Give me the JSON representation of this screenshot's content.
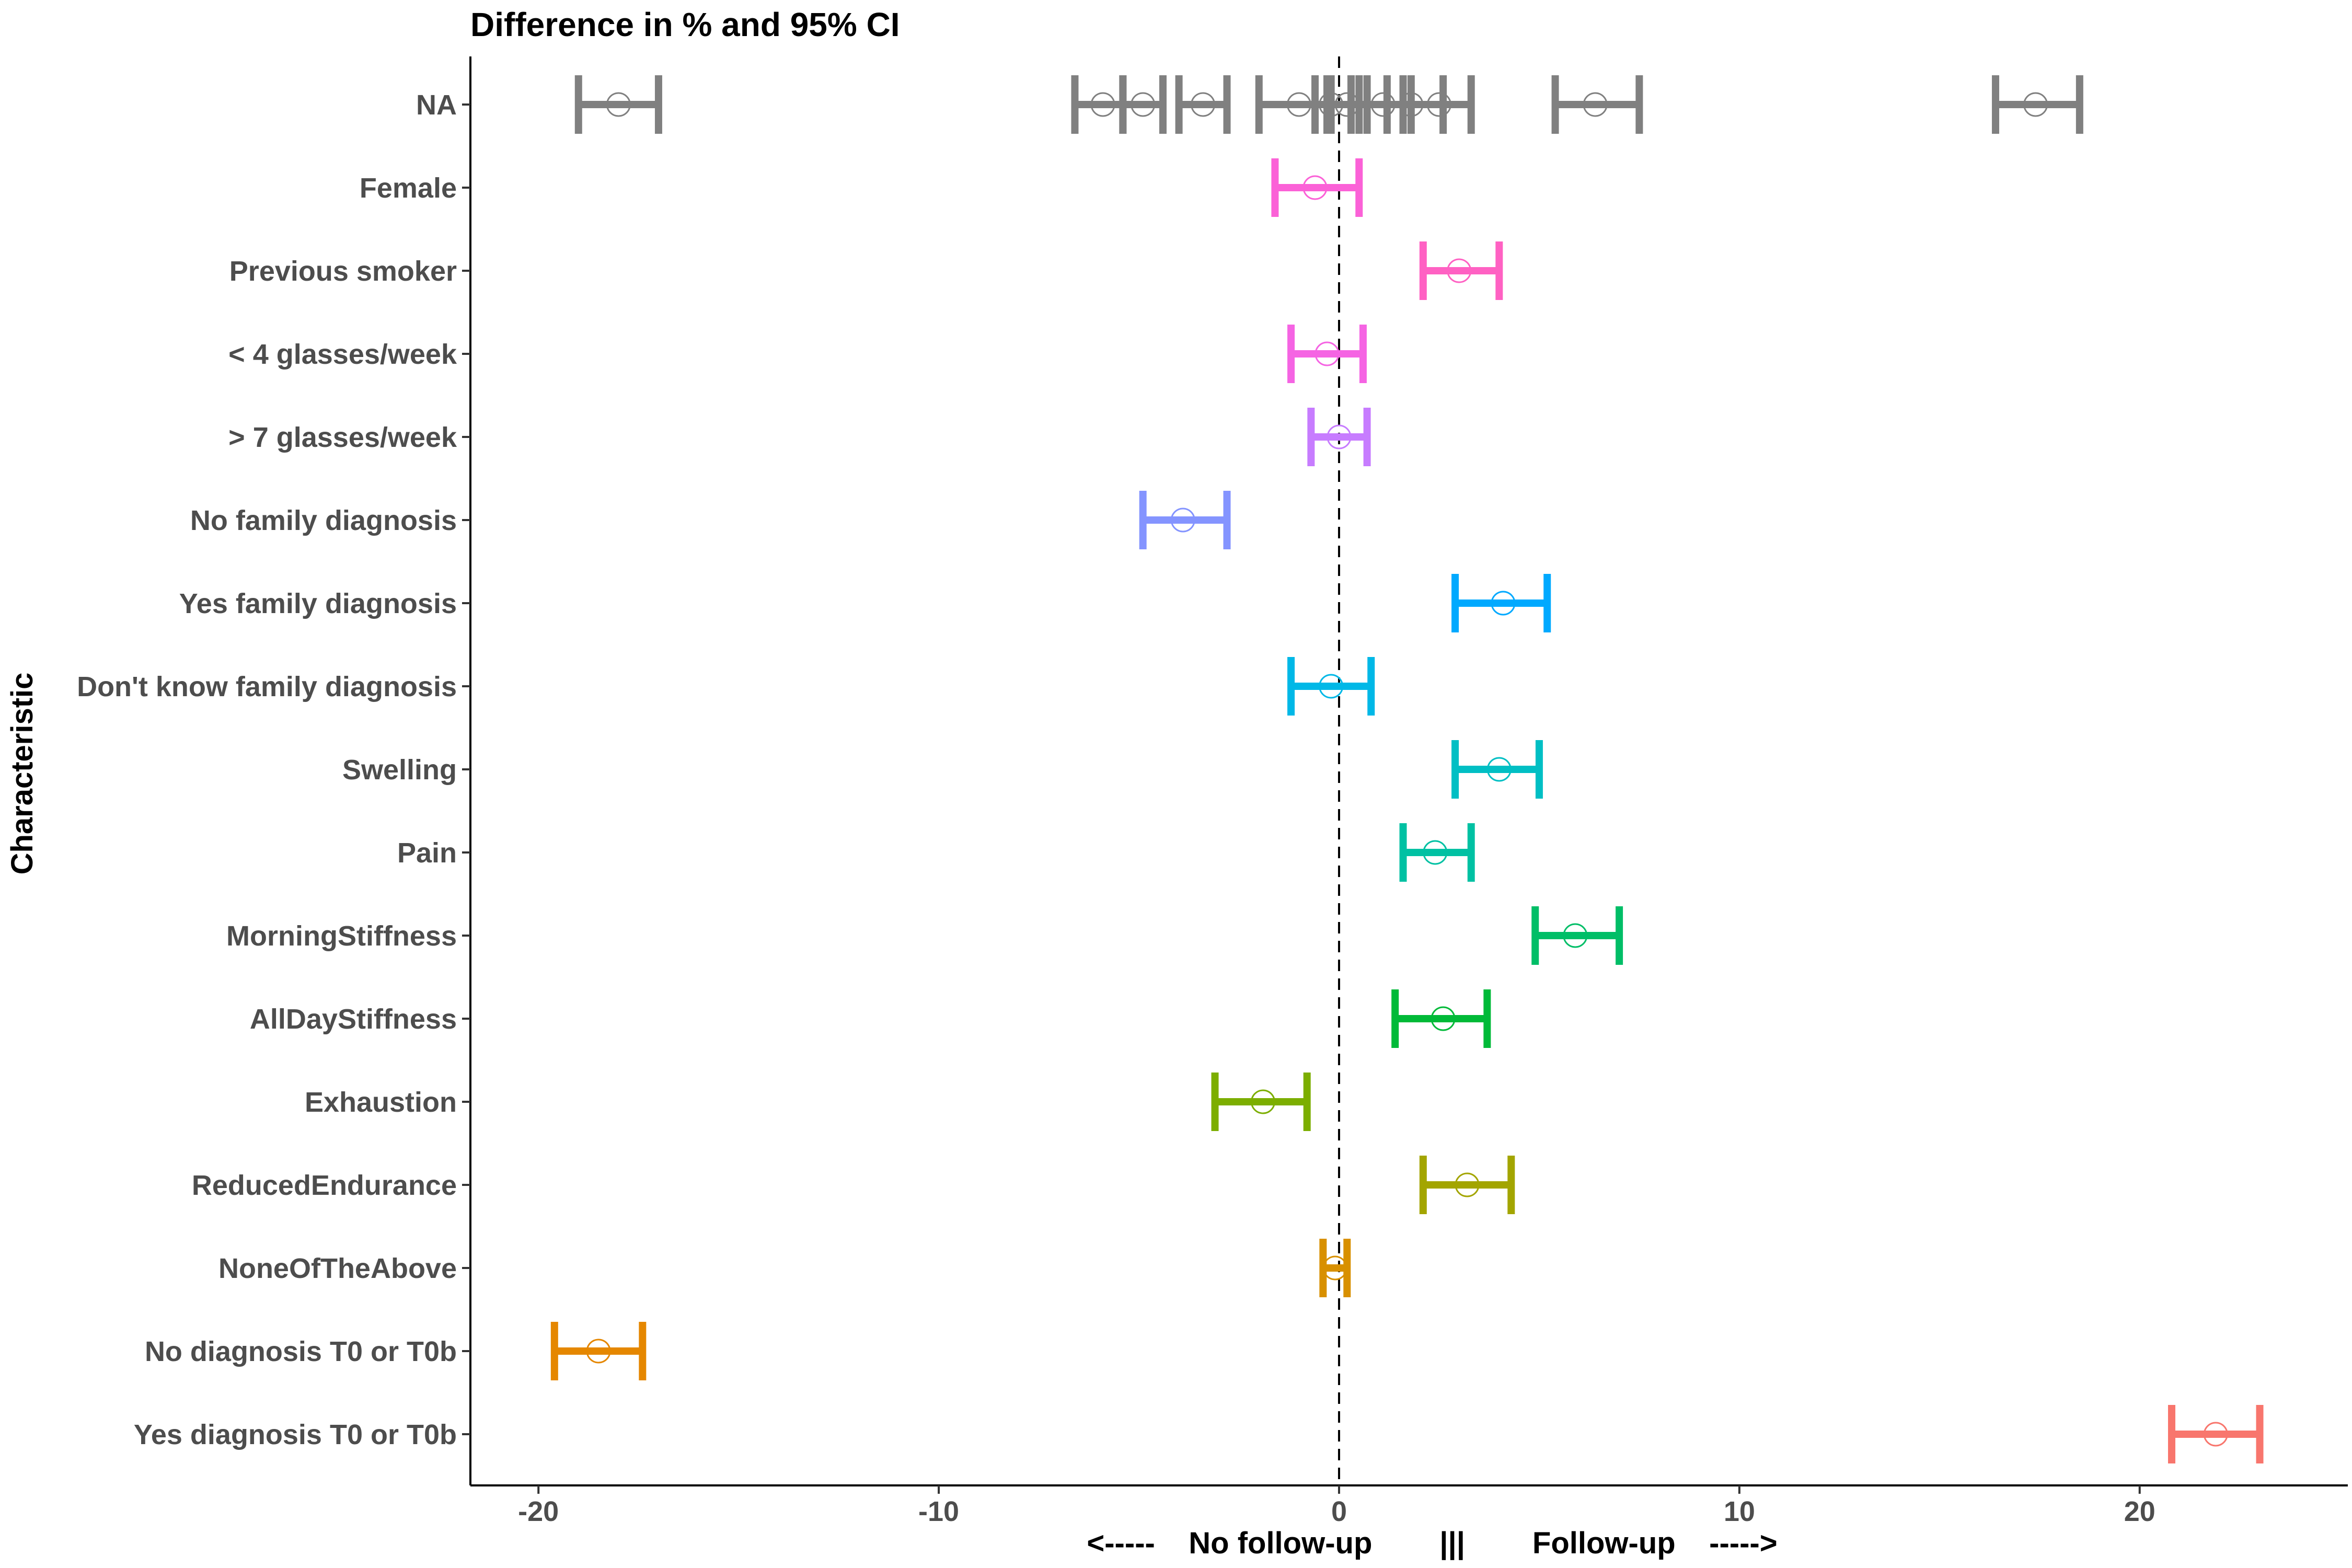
{
  "chart_data": {
    "type": "errorbar",
    "title": "Difference in % and 95% CI",
    "ylabel": "Characteristic",
    "xlabel": "<-----    No follow-up        |||        Follow-up    ----->",
    "xlim": [
      -21.7,
      25.2
    ],
    "xticks": [
      -20,
      -10,
      0,
      10,
      20
    ],
    "reference_line": 0,
    "grid": false,
    "categories": [
      "NA",
      "Female",
      "Previous smoker",
      "< 4 glasses/week",
      "> 7 glasses/week",
      "No family diagnosis",
      "Yes family diagnosis",
      "Don't know family diagnosis",
      "Swelling",
      "Pain",
      "MorningStiffness",
      "AllDayStiffness",
      "Exhaustion",
      "ReducedEndurance",
      "NoneOfTheAbove",
      "No diagnosis T0 or T0b",
      "Yes diagnosis T0 or T0b"
    ],
    "points": [
      {
        "category": "NA",
        "estimate": -18.0,
        "lower": -19.0,
        "upper": -17.0,
        "color": "#808080"
      },
      {
        "category": "NA",
        "estimate": -5.9,
        "lower": -6.6,
        "upper": -5.4,
        "color": "#808080"
      },
      {
        "category": "NA",
        "estimate": -4.9,
        "lower": -5.4,
        "upper": -4.4,
        "color": "#808080"
      },
      {
        "category": "NA",
        "estimate": -3.4,
        "lower": -4.0,
        "upper": -2.8,
        "color": "#808080"
      },
      {
        "category": "NA",
        "estimate": -1.0,
        "lower": -2.0,
        "upper": -0.3,
        "color": "#808080"
      },
      {
        "category": "NA",
        "estimate": -0.2,
        "lower": -0.6,
        "upper": 0.3,
        "color": "#808080"
      },
      {
        "category": "NA",
        "estimate": 0.2,
        "lower": -0.2,
        "upper": 0.7,
        "color": "#808080"
      },
      {
        "category": "NA",
        "estimate": 1.1,
        "lower": 0.5,
        "upper": 1.6,
        "color": "#808080"
      },
      {
        "category": "NA",
        "estimate": 1.8,
        "lower": 1.2,
        "upper": 2.6,
        "color": "#808080"
      },
      {
        "category": "NA",
        "estimate": 2.5,
        "lower": 1.8,
        "upper": 3.3,
        "color": "#808080"
      },
      {
        "category": "NA",
        "estimate": 6.4,
        "lower": 5.4,
        "upper": 7.5,
        "color": "#808080"
      },
      {
        "category": "NA",
        "estimate": 17.4,
        "lower": 16.4,
        "upper": 18.5,
        "color": "#808080"
      },
      {
        "category": "Female",
        "estimate": -0.6,
        "lower": -1.6,
        "upper": 0.5,
        "color": "#FB61D7"
      },
      {
        "category": "Previous smoker",
        "estimate": 3.0,
        "lower": 2.1,
        "upper": 4.0,
        "color": "#FF61C3"
      },
      {
        "category": "< 4 glasses/week",
        "estimate": -0.3,
        "lower": -1.2,
        "upper": 0.6,
        "color": "#F564E3"
      },
      {
        "category": "> 7 glasses/week",
        "estimate": 0.0,
        "lower": -0.7,
        "upper": 0.7,
        "color": "#C77CFF"
      },
      {
        "category": "No family diagnosis",
        "estimate": -3.9,
        "lower": -4.9,
        "upper": -2.8,
        "color": "#8494FF"
      },
      {
        "category": "Yes family diagnosis",
        "estimate": 4.1,
        "lower": 2.9,
        "upper": 5.2,
        "color": "#00A9FF"
      },
      {
        "category": "Don't know family diagnosis",
        "estimate": -0.2,
        "lower": -1.2,
        "upper": 0.8,
        "color": "#00B8E7"
      },
      {
        "category": "Swelling",
        "estimate": 4.0,
        "lower": 2.9,
        "upper": 5.0,
        "color": "#00BFC4"
      },
      {
        "category": "Pain",
        "estimate": 2.4,
        "lower": 1.6,
        "upper": 3.3,
        "color": "#00C1A3"
      },
      {
        "category": "MorningStiffness",
        "estimate": 5.9,
        "lower": 4.9,
        "upper": 7.0,
        "color": "#00BE67"
      },
      {
        "category": "AllDayStiffness",
        "estimate": 2.6,
        "lower": 1.4,
        "upper": 3.7,
        "color": "#00BA38"
      },
      {
        "category": "Exhaustion",
        "estimate": -1.9,
        "lower": -3.1,
        "upper": -0.8,
        "color": "#7CAE00"
      },
      {
        "category": "ReducedEndurance",
        "estimate": 3.2,
        "lower": 2.1,
        "upper": 4.3,
        "color": "#A3A500"
      },
      {
        "category": "NoneOfTheAbove",
        "estimate": -0.1,
        "lower": -0.4,
        "upper": 0.2,
        "color": "#D89000"
      },
      {
        "category": "No diagnosis T0 or T0b",
        "estimate": -18.5,
        "lower": -19.6,
        "upper": -17.4,
        "color": "#E58700"
      },
      {
        "category": "Yes diagnosis T0 or T0b",
        "estimate": 21.9,
        "lower": 20.8,
        "upper": 23.0,
        "color": "#F8766D"
      }
    ]
  }
}
